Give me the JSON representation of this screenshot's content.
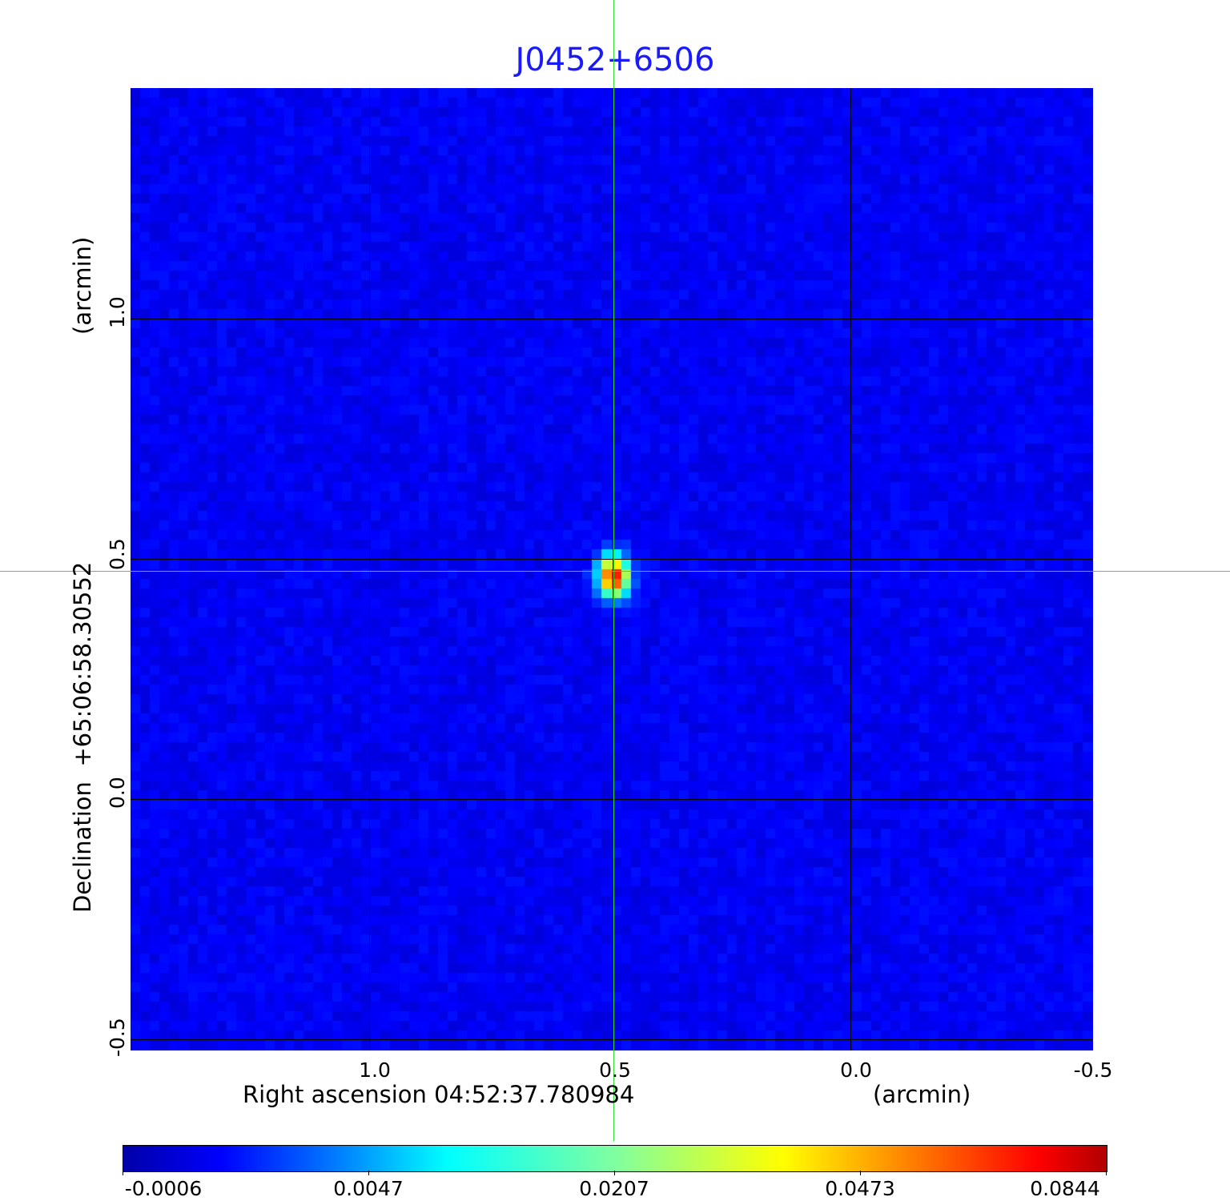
{
  "chart_data": {
    "type": "heatmap",
    "title": "J0452+6506",
    "xlabel": "Right ascension  04:52:37.780984",
    "xunit": "(arcmin)",
    "ylabel": "Declination  +65:06:58.30552",
    "yunit": "(arcmin)",
    "x_ticks": [
      "1.0",
      "0.5",
      "0.0",
      "-0.5"
    ],
    "y_ticks": [
      "1.0",
      "0.5",
      "0.0",
      "-0.5"
    ],
    "xlim": [
      1.5,
      -0.5
    ],
    "ylim": [
      -0.52,
      1.5
    ],
    "grid": true,
    "colormap": "jet",
    "colorbar_ticks": [
      "-0.0006",
      "0.0047",
      "0.0207",
      "0.0473",
      "0.0844"
    ],
    "value_range": [
      -0.0006,
      0.0844
    ],
    "source_peak": {
      "x_arcmin": 0.495,
      "y_arcmin": 0.475,
      "value": 0.0844
    },
    "crosshair": {
      "x_arcmin": 0.5,
      "y_arcmin": 0.475,
      "color": "#33dd33"
    }
  }
}
